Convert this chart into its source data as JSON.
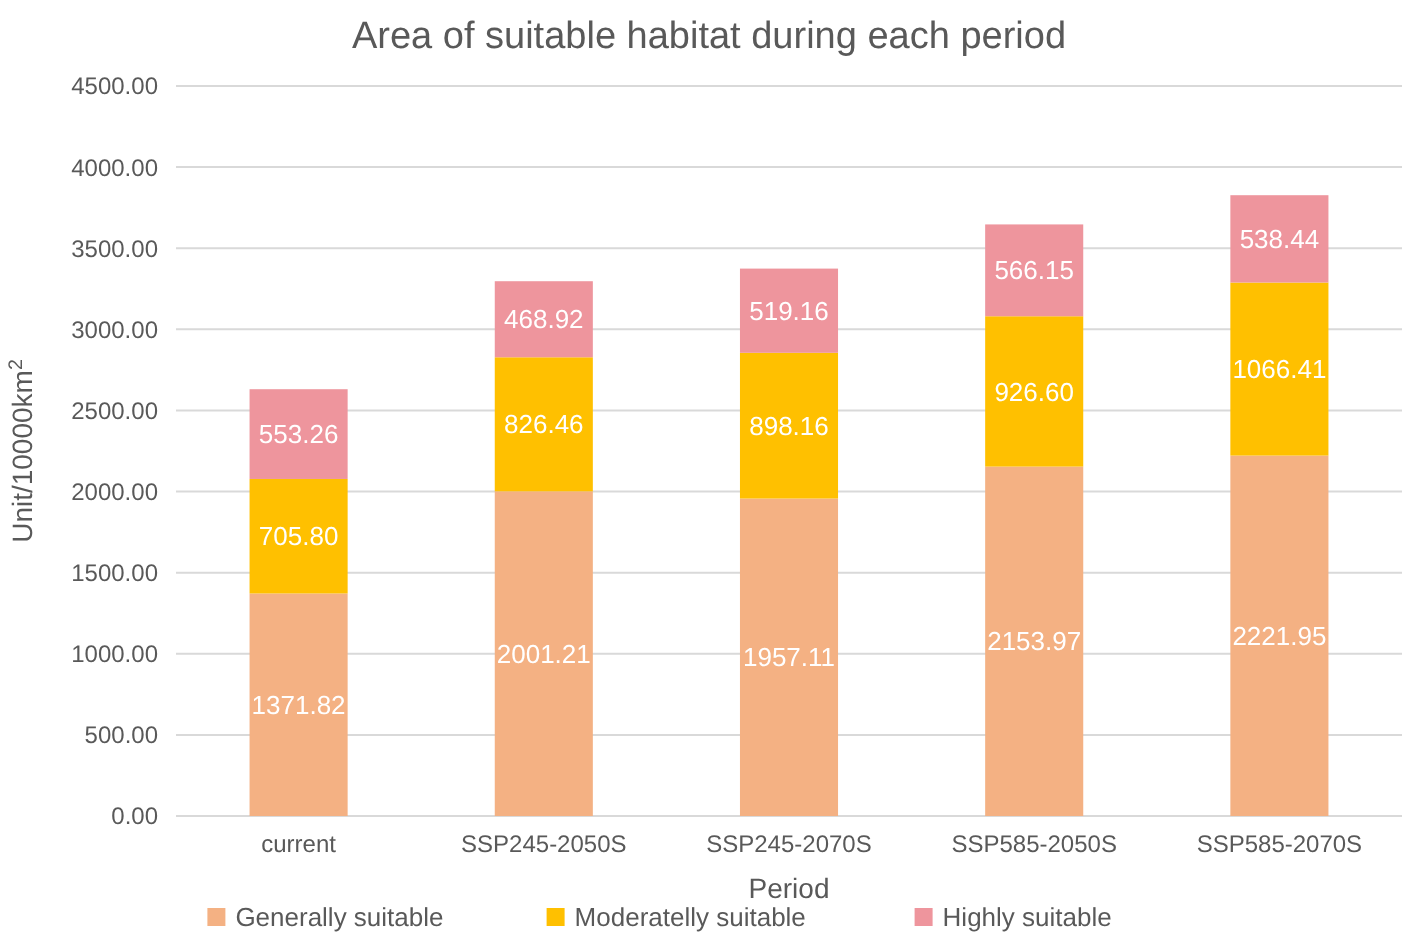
{
  "chart_data": {
    "type": "bar",
    "title": "Area of suitable habitat during each period",
    "xlabel": "Period",
    "ylabel": "Unit/10000km$^{2}$",
    "stacked": true,
    "grid": "y",
    "legend": "bottom",
    "categories": [
      "current",
      "SSP245-2050S",
      "SSP245-2070S",
      "SSP585-2050S",
      "SSP585-2070S"
    ],
    "ylim": [
      0,
      4500
    ],
    "yticks": [
      {
        "value": 0,
        "label": "0.00"
      },
      {
        "value": 500,
        "label": "500.00"
      },
      {
        "value": 1000,
        "label": "1000.00"
      },
      {
        "value": 1500,
        "label": "1500.00"
      },
      {
        "value": 2000,
        "label": "2000.00"
      },
      {
        "value": 2500,
        "label": "2500.00"
      },
      {
        "value": 3000,
        "label": "3000.00"
      },
      {
        "value": 3500,
        "label": "3500.00"
      },
      {
        "value": 4000,
        "label": "4000.00"
      },
      {
        "value": 4500,
        "label": "4500.00"
      }
    ],
    "series": [
      {
        "name": "Generally suitable",
        "color": "#f4b183",
        "values": [
          1371.82,
          2001.21,
          1957.11,
          2153.97,
          2221.95
        ],
        "value_labels": [
          "1371.82",
          "2001.21",
          "1957.11",
          "2153.97",
          "2221.95"
        ]
      },
      {
        "name": "Moderatelly suitable",
        "color": "#ffc000",
        "values": [
          705.8,
          826.46,
          898.16,
          926.6,
          1066.41
        ],
        "value_labels": [
          "705.80",
          "826.46",
          "898.16",
          "926.60",
          "1066.41"
        ]
      },
      {
        "name": "Highly suitable",
        "color": "#ee959d",
        "values": [
          553.26,
          468.92,
          519.16,
          566.15,
          538.44
        ],
        "value_labels": [
          "553.26",
          "468.92",
          "519.16",
          "566.15",
          "538.44"
        ]
      }
    ]
  }
}
